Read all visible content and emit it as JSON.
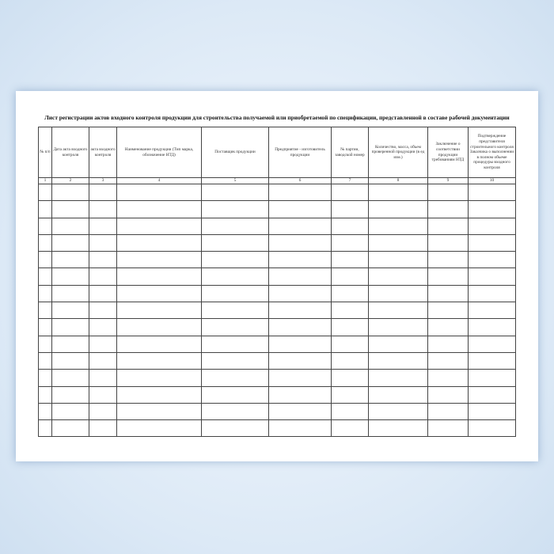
{
  "document": {
    "title": "Лист регистрации актов входного контроля продукции для строительства получаемой или приобретаемой по спецификации, представленной в составе рабочей документации",
    "columns": [
      {
        "header": "№ п/п",
        "number": "1"
      },
      {
        "header": "Дата акта входного контроля",
        "number": "2"
      },
      {
        "header": "акта входного контроля",
        "number": "3"
      },
      {
        "header": "Наименование продукции (Тип марка, обозначение НТД)",
        "number": "4"
      },
      {
        "header": "Поставщик продукции",
        "number": "5"
      },
      {
        "header": "Предприятие - изготовитель продукции",
        "number": "6"
      },
      {
        "header": "№ партии, заводской номер",
        "number": "7"
      },
      {
        "header": "Количество, масса, объем проверенной продукции (в ед изм.)",
        "number": "8"
      },
      {
        "header": "Заключение о соответствии продукции требованиям НТД",
        "number": "9"
      },
      {
        "header": "Подтверждение представителя строительного контроля Заказчика о выполнении в полном объеме процедуры входного контроля",
        "number": "10"
      }
    ],
    "empty_rows": 15
  }
}
